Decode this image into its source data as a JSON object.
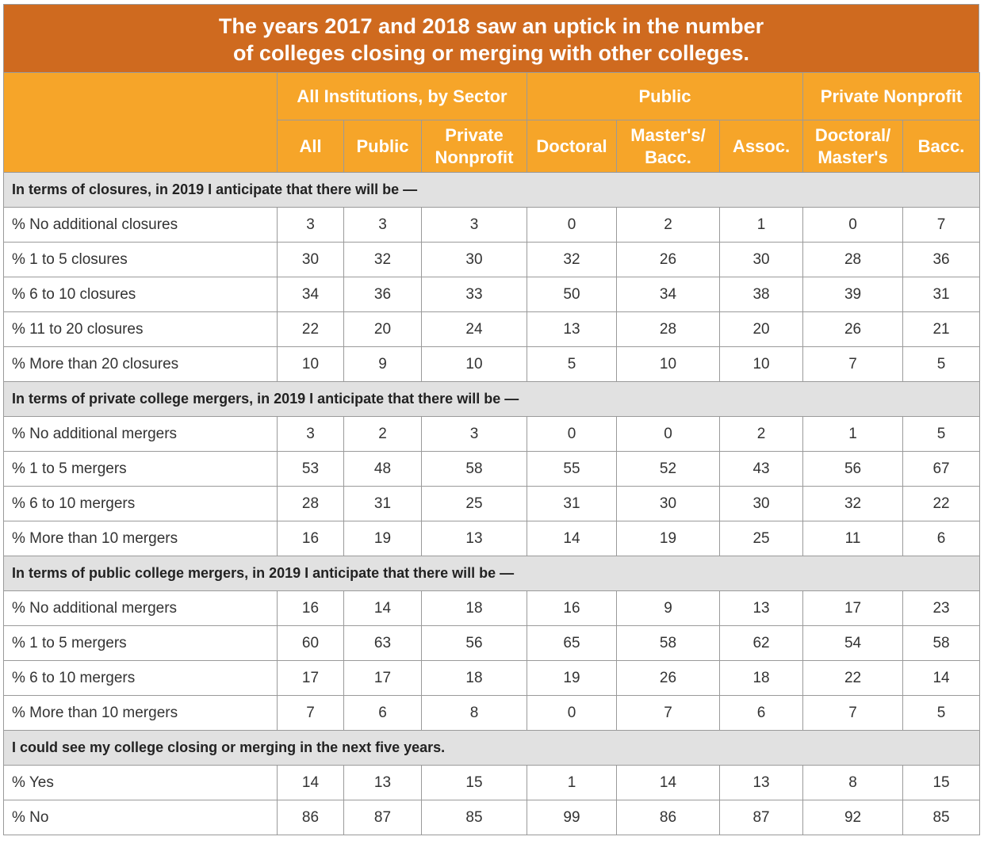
{
  "title": {
    "line1": "The years 2017 and 2018 saw an uptick in the number",
    "line2": "of colleges closing or merging with other colleges."
  },
  "groups": [
    "All Institutions, by Sector",
    "Public",
    "Private Nonprofit"
  ],
  "columns": [
    {
      "l1": "All",
      "l2": ""
    },
    {
      "l1": "Public",
      "l2": ""
    },
    {
      "l1": "Private",
      "l2": "Nonprofit"
    },
    {
      "l1": "Doctoral",
      "l2": ""
    },
    {
      "l1": "Master's/",
      "l2": "Bacc."
    },
    {
      "l1": "Assoc.",
      "l2": ""
    },
    {
      "l1": "Doctoral/",
      "l2": "Master's"
    },
    {
      "l1": "Bacc.",
      "l2": ""
    }
  ],
  "sections": [
    {
      "title": "In terms of closures, in 2019 I anticipate that there will be —",
      "rows": [
        {
          "label": "% No additional closures",
          "values": [
            "3",
            "3",
            "3",
            "0",
            "2",
            "1",
            "0",
            "7"
          ]
        },
        {
          "label": "% 1 to 5 closures",
          "values": [
            "30",
            "32",
            "30",
            "32",
            "26",
            "30",
            "28",
            "36"
          ]
        },
        {
          "label": "% 6 to 10 closures",
          "values": [
            "34",
            "36",
            "33",
            "50",
            "34",
            "38",
            "39",
            "31"
          ]
        },
        {
          "label": "% 11 to 20 closures",
          "values": [
            "22",
            "20",
            "24",
            "13",
            "28",
            "20",
            "26",
            "21"
          ]
        },
        {
          "label": "% More than 20 closures",
          "values": [
            "10",
            "9",
            "10",
            "5",
            "10",
            "10",
            "7",
            "5"
          ]
        }
      ]
    },
    {
      "title": "In terms of private college mergers, in 2019 I anticipate that there will be —",
      "rows": [
        {
          "label": "% No additional mergers",
          "values": [
            "3",
            "2",
            "3",
            "0",
            "0",
            "2",
            "1",
            "5"
          ]
        },
        {
          "label": "% 1 to 5 mergers",
          "values": [
            "53",
            "48",
            "58",
            "55",
            "52",
            "43",
            "56",
            "67"
          ]
        },
        {
          "label": "% 6 to 10 mergers",
          "values": [
            "28",
            "31",
            "25",
            "31",
            "30",
            "30",
            "32",
            "22"
          ]
        },
        {
          "label": "% More than 10 mergers",
          "values": [
            "16",
            "19",
            "13",
            "14",
            "19",
            "25",
            "11",
            "6"
          ]
        }
      ]
    },
    {
      "title": "In terms of public college mergers, in 2019 I anticipate that there will be —",
      "rows": [
        {
          "label": "% No additional mergers",
          "values": [
            "16",
            "14",
            "18",
            "16",
            "9",
            "13",
            "17",
            "23"
          ]
        },
        {
          "label": "% 1 to 5 mergers",
          "values": [
            "60",
            "63",
            "56",
            "65",
            "58",
            "62",
            "54",
            "58"
          ]
        },
        {
          "label": "% 6 to 10 mergers",
          "values": [
            "17",
            "17",
            "18",
            "19",
            "26",
            "18",
            "22",
            "14"
          ]
        },
        {
          "label": "% More than 10 mergers",
          "values": [
            "7",
            "6",
            "8",
            "0",
            "7",
            "6",
            "7",
            "5"
          ]
        }
      ]
    },
    {
      "title": "I could see my college closing or merging in the next five years.",
      "rows": [
        {
          "label": "% Yes",
          "values": [
            "14",
            "13",
            "15",
            "1",
            "14",
            "13",
            "8",
            "15"
          ]
        },
        {
          "label": "% No",
          "values": [
            "86",
            "87",
            "85",
            "99",
            "86",
            "87",
            "92",
            "85"
          ]
        }
      ]
    }
  ]
}
